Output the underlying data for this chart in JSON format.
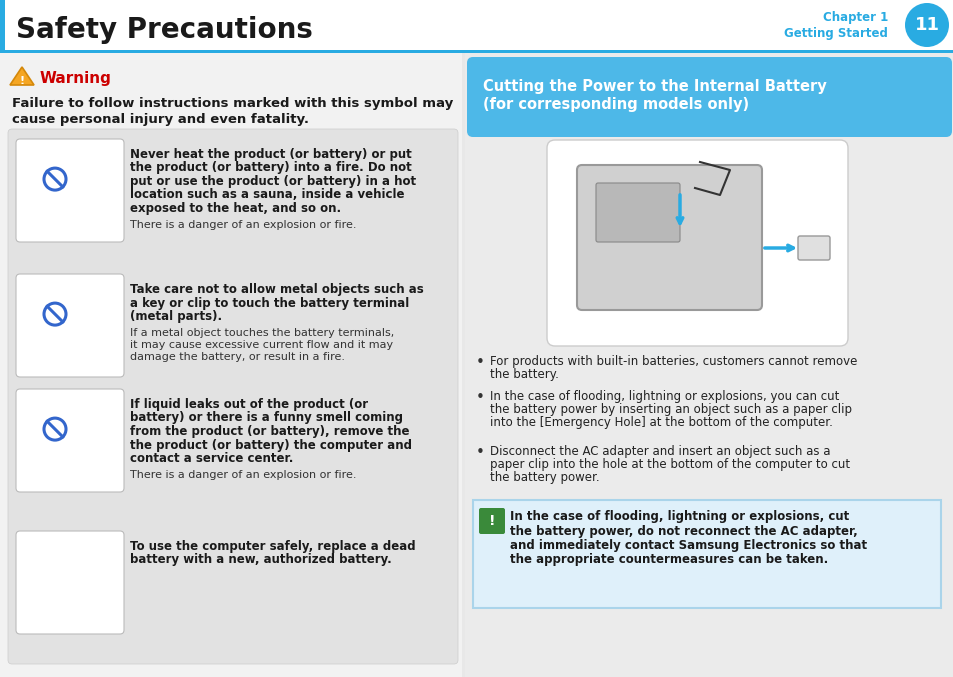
{
  "page_bg": "#e8e8e8",
  "header_bg": "#ffffff",
  "header_title": "Safety Precautions",
  "header_chapter": "Chapter 1",
  "header_subtitle": "Getting Started",
  "header_page_num": "11",
  "header_circle_color": "#29abe2",
  "header_text_color": "#29abe2",
  "divider_color": "#29abe2",
  "warning_color": "#cc0000",
  "warning_title": "Warning",
  "warning_desc1": "Failure to follow instructions marked with this symbol may",
  "warning_desc2": "cause personal injury and even fatality.",
  "left_bg": "#f2f2f2",
  "right_bg": "#ebebeb",
  "content_box_bg": "#e2e2e2",
  "blue_box_bg": "#4db8e8",
  "blue_box_title1": "Cutting the Power to the Internal Battery",
  "blue_box_title2": "(for corresponding models only)",
  "items": [
    {
      "bold": "Never heat the product (or battery) or put\nthe product (or battery) into a fire. Do not\nput or use the product (or battery) in a hot\nlocation such as a sauna, inside a vehicle\nexposed to the heat, and so on.",
      "normal": "There is a danger of an explosion or fire."
    },
    {
      "bold": "Take care not to allow metal objects such as\na key or clip to touch the battery terminal\n(metal parts).",
      "normal": "If a metal object touches the battery terminals,\nit may cause excessive current flow and it may\ndamage the battery, or result in a fire."
    },
    {
      "bold": "If liquid leaks out of the product (or\nbattery) or there is a funny smell coming\nfrom the product (or battery), remove the\nthe product (or battery) the computer and\ncontact a service center.",
      "normal": "There is a danger of an explosion or fire."
    },
    {
      "bold": "To use the computer safely, replace a dead\nbattery with a new, authorized battery.",
      "normal": ""
    }
  ],
  "bullet_points": [
    "For products with built-in batteries, customers cannot remove\nthe battery.",
    "In the case of flooding, lightning or explosions, you can cut\nthe battery power by inserting an object such as a paper clip\ninto the [Emergency Hole] at the bottom of the computer.",
    "Disconnect the AC adapter and insert an object such as a\npaper clip into the hole at the bottom of the computer to cut\nthe battery power."
  ],
  "caution_box_bg": "#dff0fa",
  "caution_box_border": "#aad4ea",
  "caution_icon_bg": "#3a8a3a",
  "caution_text_line1": "In the case of flooding, lightning or explosions, cut",
  "caution_text_line2": "the battery power, do not reconnect the AC adapter,",
  "caution_text_line3": "and immediately contact Samsung Electronics so that",
  "caution_text_line4": "the appropriate countermeasures can be taken."
}
